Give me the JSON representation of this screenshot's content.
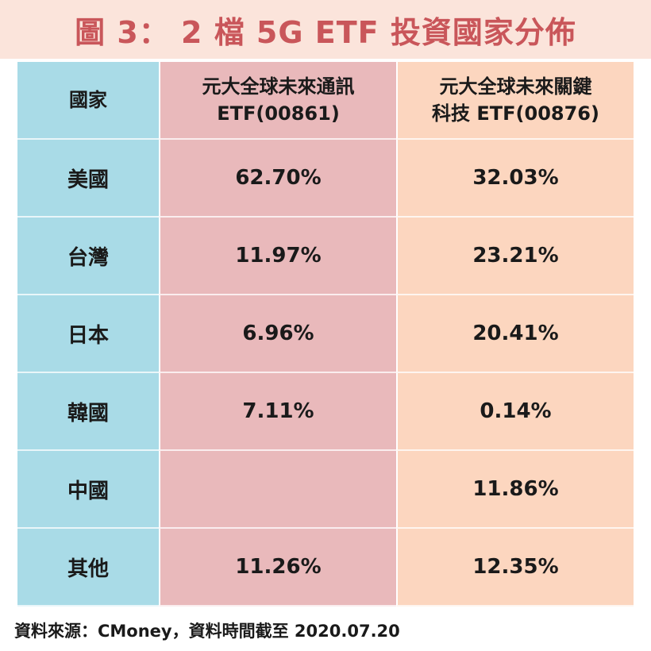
{
  "title": "圖 3： 2 檔 5G ETF 投資國家分佈",
  "chart_data": {
    "type": "table",
    "columns": [
      {
        "label_line1": "國家",
        "label_line2": ""
      },
      {
        "label_line1": "元大全球未來通訊",
        "label_line2": "ETF(00861)"
      },
      {
        "label_line1": "元大全球未來關鍵",
        "label_line2": "科技 ETF(00876)"
      }
    ],
    "rows": [
      {
        "country": "美國",
        "etf_00861": "62.70%",
        "etf_00876": "32.03%"
      },
      {
        "country": "台灣",
        "etf_00861": "11.97%",
        "etf_00876": "23.21%"
      },
      {
        "country": "日本",
        "etf_00861": "6.96%",
        "etf_00876": "20.41%"
      },
      {
        "country": "韓國",
        "etf_00861": "7.11%",
        "etf_00876": "0.14%"
      },
      {
        "country": "中國",
        "etf_00861": "",
        "etf_00876": "11.86%"
      },
      {
        "country": "其他",
        "etf_00861": "11.26%",
        "etf_00876": "12.35%"
      }
    ]
  },
  "source": "資料來源：CMoney，資料時間截至 2020.07.20",
  "colors": {
    "title_band": "#fbe4db",
    "title_text": "#c9565a",
    "country_column": "#a9dbe7",
    "etf_00861_column": "#e9b9bb",
    "etf_00876_column": "#fcd6bf"
  }
}
